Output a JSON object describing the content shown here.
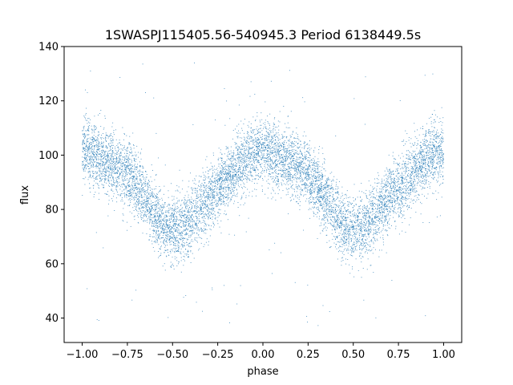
{
  "chart_data": {
    "type": "scatter",
    "title": "1SWASPJ115405.56-540945.3 Period 6138449.5s",
    "xlabel": "phase",
    "ylabel": "flux",
    "xlim": [
      -1.1,
      1.1
    ],
    "ylim": [
      31,
      140
    ],
    "grid": false,
    "legend": "none",
    "x_ticks": [
      -1.0,
      -0.75,
      -0.5,
      -0.25,
      0.0,
      0.25,
      0.5,
      0.75,
      1.0
    ],
    "x_tick_labels": [
      "−1.00",
      "−0.75",
      "−0.50",
      "−0.25",
      "0.00",
      "0.25",
      "0.50",
      "0.75",
      "1.00"
    ],
    "y_ticks": [
      40,
      60,
      80,
      100,
      120,
      140
    ],
    "y_tick_labels": [
      "40",
      "60",
      "80",
      "100",
      "120",
      "140"
    ],
    "point_color": "#1f77b4",
    "series": [
      {
        "phase_curve": {
          "x": [
            0.0,
            0.05,
            0.1,
            0.15,
            0.2,
            0.25,
            0.3,
            0.35,
            0.4,
            0.45,
            0.5,
            0.55,
            0.6,
            0.65,
            0.7,
            0.75,
            0.8,
            0.85,
            0.9,
            0.95,
            1.0
          ],
          "y": [
            102,
            101,
            99,
            97,
            95,
            93,
            89,
            84,
            78,
            74,
            72,
            73,
            76,
            80,
            84,
            88,
            91,
            94,
            98,
            101,
            102
          ]
        },
        "x_range": [
          -1.0,
          1.0
        ],
        "scatter_sd": 6,
        "points": 9000,
        "outlier_range": [
          36,
          135
        ]
      }
    ]
  }
}
